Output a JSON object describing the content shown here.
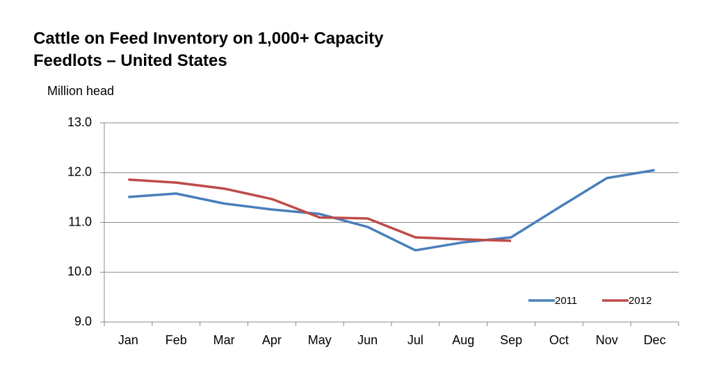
{
  "chart_data": {
    "type": "line",
    "title": "Cattle on Feed Inventory on 1,000+ Capacity Feedlots – United States",
    "y_label": "Million head",
    "categories": [
      "Jan",
      "Feb",
      "Mar",
      "Apr",
      "May",
      "Jun",
      "Jul",
      "Aug",
      "Sep",
      "Oct",
      "Nov",
      "Dec"
    ],
    "series": [
      {
        "name": "2011",
        "color": "#4a7ebb",
        "values": [
          11.51,
          11.58,
          11.38,
          11.26,
          11.17,
          10.91,
          10.44,
          10.6,
          10.7,
          11.3,
          11.89,
          12.05
        ]
      },
      {
        "name": "2012",
        "color": "#be4b48",
        "values": [
          11.86,
          11.8,
          11.68,
          11.47,
          11.1,
          11.08,
          10.7,
          10.66,
          10.63,
          null,
          null,
          null
        ]
      }
    ],
    "ylim": [
      9,
      13
    ],
    "yticks": [
      {
        "value": 9,
        "label": "9.0"
      },
      {
        "value": 10,
        "label": "10.0"
      },
      {
        "value": 11,
        "label": "11.0"
      },
      {
        "value": 12,
        "label": "12.0"
      },
      {
        "value": 13,
        "label": "13.0"
      }
    ],
    "grid": true,
    "legend": "lower right"
  }
}
